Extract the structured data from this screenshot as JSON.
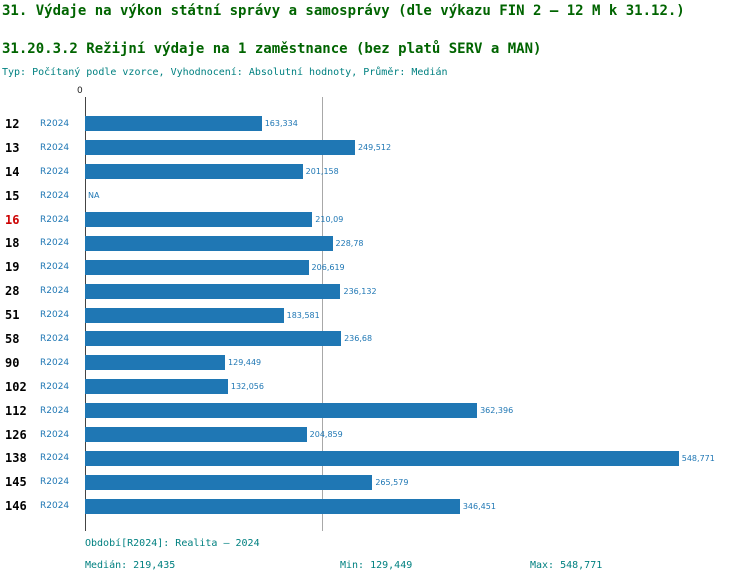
{
  "header": {
    "title1": "31. Výdaje na výkon státní správy a samosprávy (dle výkazu FIN 2 – 12 M k 31.12.)",
    "title2": "31.20.3.2 Režijní výdaje na 1 zaměstnance (bez platů SERV a MAN)",
    "meta": "Typ: Počítaný podle vzorce, Vyhodnocení: Absolutní hodnoty, Průměr: Medián"
  },
  "colors": {
    "bar": "#1f77b4",
    "title": "#006400",
    "meta_text": "#008080",
    "row_id": "#000000",
    "row_id_highlight": "#cc0000",
    "median_line": "#a8a8a8",
    "axis_line": "#444444"
  },
  "chart_data": {
    "type": "bar",
    "orientation": "horizontal",
    "title": "31.20.3.2 Režijní výdaje na 1 zaměstnance (bez platů SERV a MAN)",
    "xlabel": "",
    "ylabel": "",
    "xlim": [
      0,
      610
    ],
    "zero_tick": "0",
    "grid": false,
    "legend": "none",
    "median_value": 219.435,
    "rows": [
      {
        "id": "12",
        "series": "R2024",
        "value": 163.334,
        "display": "163,334",
        "highlight": false
      },
      {
        "id": "13",
        "series": "R2024",
        "value": 249.512,
        "display": "249,512",
        "highlight": false
      },
      {
        "id": "14",
        "series": "R2024",
        "value": 201.158,
        "display": "201,158",
        "highlight": false
      },
      {
        "id": "15",
        "series": "R2024",
        "value": null,
        "display": "NA",
        "highlight": false
      },
      {
        "id": "16",
        "series": "R2024",
        "value": 210.09,
        "display": "210,09",
        "highlight": true
      },
      {
        "id": "18",
        "series": "R2024",
        "value": 228.78,
        "display": "228,78",
        "highlight": false
      },
      {
        "id": "19",
        "series": "R2024",
        "value": 206.619,
        "display": "206,619",
        "highlight": false
      },
      {
        "id": "28",
        "series": "R2024",
        "value": 236.132,
        "display": "236,132",
        "highlight": false
      },
      {
        "id": "51",
        "series": "R2024",
        "value": 183.581,
        "display": "183,581",
        "highlight": false
      },
      {
        "id": "58",
        "series": "R2024",
        "value": 236.68,
        "display": "236,68",
        "highlight": false
      },
      {
        "id": "90",
        "series": "R2024",
        "value": 129.449,
        "display": "129,449",
        "highlight": false
      },
      {
        "id": "102",
        "series": "R2024",
        "value": 132.056,
        "display": "132,056",
        "highlight": false
      },
      {
        "id": "112",
        "series": "R2024",
        "value": 362.396,
        "display": "362,396",
        "highlight": false
      },
      {
        "id": "126",
        "series": "R2024",
        "value": 204.859,
        "display": "204,859",
        "highlight": false
      },
      {
        "id": "138",
        "series": "R2024",
        "value": 548.771,
        "display": "548,771",
        "highlight": false
      },
      {
        "id": "145",
        "series": "R2024",
        "value": 265.579,
        "display": "265,579",
        "highlight": false
      },
      {
        "id": "146",
        "series": "R2024",
        "value": 346.451,
        "display": "346,451",
        "highlight": false
      }
    ],
    "stats": {
      "median": "219,435",
      "min": "129,449",
      "max": "548,771"
    }
  },
  "footer": {
    "period": "Období[R2024]: Realita – 2024",
    "median_label": "Medián: 219,435",
    "min_label": "Min: 129,449",
    "max_label": "Max: 548,771"
  }
}
